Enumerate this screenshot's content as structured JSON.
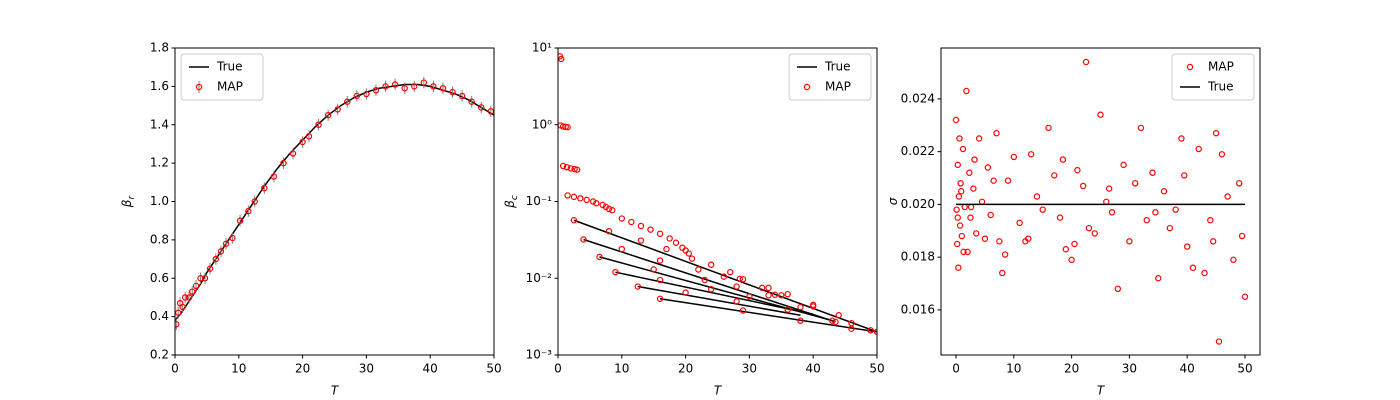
{
  "chart_data": [
    {
      "type": "scatter",
      "xlabel": "T",
      "ylabel": {
        "text": "β",
        "subscript": "r"
      },
      "xlim": [
        0,
        50
      ],
      "ylim": [
        0.2,
        1.8
      ],
      "xticks": [
        0,
        10,
        20,
        30,
        40,
        50
      ],
      "yticks": [
        0.2,
        0.4,
        0.6,
        0.8,
        {
          "value": 1,
          "label": "1.0"
        },
        1.2,
        1.4,
        1.6,
        1.8
      ],
      "legend": "upper left",
      "series": [
        {
          "name": "True",
          "mark": "line",
          "color": "#000000",
          "x": [
            0,
            1,
            2,
            3,
            4,
            5,
            6,
            7,
            8,
            10,
            12,
            14,
            16,
            18,
            20,
            22,
            24,
            26,
            28,
            30,
            32,
            34,
            36,
            38,
            40,
            42,
            44,
            46,
            48,
            50
          ],
          "values": [
            0.38,
            0.42,
            0.47,
            0.52,
            0.57,
            0.63,
            0.68,
            0.73,
            0.78,
            0.88,
            0.98,
            1.08,
            1.17,
            1.25,
            1.32,
            1.39,
            1.45,
            1.5,
            1.54,
            1.57,
            1.59,
            1.6,
            1.61,
            1.61,
            1.6,
            1.58,
            1.56,
            1.53,
            1.49,
            1.45
          ]
        },
        {
          "name": "MAP",
          "mark": "errorbar",
          "color": "#ff0000",
          "error_color": "#808080",
          "x": [
            0.2,
            0.5,
            0.8,
            1.2,
            1.6,
            2.2,
            2.7,
            3.3,
            4,
            4.7,
            5.5,
            6.4,
            7.2,
            8,
            9,
            10.2,
            11.5,
            12.5,
            14,
            15.5,
            17,
            18.5,
            20,
            21,
            22.5,
            24,
            25.5,
            27,
            28.5,
            30,
            31.5,
            33,
            34.5,
            36,
            37.5,
            39,
            40.5,
            42,
            43.5,
            45,
            46.5,
            48,
            49.5
          ],
          "values": [
            0.36,
            0.42,
            0.47,
            0.45,
            0.5,
            0.5,
            0.53,
            0.56,
            0.6,
            0.6,
            0.65,
            0.7,
            0.74,
            0.78,
            0.81,
            0.9,
            0.95,
            1.0,
            1.07,
            1.13,
            1.2,
            1.25,
            1.31,
            1.34,
            1.4,
            1.45,
            1.48,
            1.52,
            1.55,
            1.56,
            1.58,
            1.6,
            1.61,
            1.59,
            1.6,
            1.62,
            1.6,
            1.59,
            1.57,
            1.55,
            1.52,
            1.49,
            1.47
          ],
          "errors": [
            0.03,
            0.03,
            0.03,
            0.03,
            0.03,
            0.03,
            0.03,
            0.03,
            0.03,
            0.03,
            0.03,
            0.03,
            0.03,
            0.03,
            0.03,
            0.03,
            0.03,
            0.03,
            0.03,
            0.03,
            0.03,
            0.03,
            0.03,
            0.03,
            0.03,
            0.03,
            0.03,
            0.03,
            0.03,
            0.03,
            0.03,
            0.03,
            0.03,
            0.03,
            0.03,
            0.03,
            0.03,
            0.03,
            0.03,
            0.03,
            0.03,
            0.03,
            0.03
          ]
        }
      ]
    },
    {
      "type": "line",
      "xlabel": "T",
      "ylabel": {
        "text": "β",
        "subscript": "c"
      },
      "xlim": [
        0,
        50
      ],
      "ylim": [
        0.001,
        10
      ],
      "yscale": "log",
      "xticks": [
        0,
        10,
        20,
        30,
        40,
        50
      ],
      "yticks": [
        {
          "value": 0.001,
          "label": "10⁻³"
        },
        {
          "value": 0.01,
          "label": "10⁻²"
        },
        {
          "value": 0.1,
          "label": "10⁻¹"
        },
        {
          "value": 1,
          "label": "10⁰"
        },
        {
          "value": 10,
          "label": "10¹"
        }
      ],
      "legend": "upper right",
      "series": [
        {
          "name": "True",
          "mark": "segments",
          "color": "#000000",
          "segments": [
            {
              "x": [
                2.5,
                50
              ],
              "values": [
                0.057,
                0.002
              ]
            },
            {
              "x": [
                4,
                43.5
              ],
              "values": [
                0.032,
                0.0027
              ]
            },
            {
              "x": [
                6.5,
                43
              ],
              "values": [
                0.019,
                0.0028
              ]
            },
            {
              "x": [
                9,
                40
              ],
              "values": [
                0.012,
                0.0034
              ]
            },
            {
              "x": [
                12.5,
                38
              ],
              "values": [
                0.0078,
                0.0033
              ]
            },
            {
              "x": [
                16,
                50
              ],
              "values": [
                0.0054,
                0.002
              ]
            }
          ]
        },
        {
          "name": "MAP",
          "mark": "scatter",
          "color": "#ff0000",
          "x": [
            0.3,
            0.5,
            0.4,
            0.8,
            1.2,
            1.5,
            0.8,
            1.4,
            2,
            2.6,
            3,
            1.5,
            2.5,
            3.5,
            4.5,
            5.5,
            6,
            7,
            7.5,
            8,
            8.5,
            10,
            11.5,
            13,
            14.5,
            16,
            17.5,
            18.5,
            19.5,
            20,
            20.5,
            2.5,
            8,
            13,
            17,
            21,
            24,
            27,
            29,
            33,
            36,
            40,
            44,
            46,
            49,
            50,
            4,
            10,
            16,
            22,
            26,
            28.5,
            32,
            35,
            40,
            43.5,
            6.5,
            15,
            23,
            28,
            33,
            38,
            43,
            9,
            16,
            24,
            30,
            34,
            12.5,
            20,
            28,
            36,
            16,
            29,
            38,
            46
          ],
          "values": [
            7.8,
            7.2,
            0.98,
            0.95,
            0.94,
            0.93,
            0.29,
            0.28,
            0.27,
            0.265,
            0.26,
            0.12,
            0.115,
            0.11,
            0.105,
            0.1,
            0.095,
            0.09,
            0.085,
            0.08,
            0.077,
            0.06,
            0.054,
            0.048,
            0.043,
            0.038,
            0.033,
            0.029,
            0.025,
            0.023,
            0.021,
            0.057,
            0.041,
            0.031,
            0.024,
            0.018,
            0.015,
            0.012,
            0.0097,
            0.0075,
            0.0062,
            0.0045,
            0.0033,
            0.0026,
            0.0021,
            0.002,
            0.032,
            0.024,
            0.017,
            0.013,
            0.0105,
            0.0098,
            0.0075,
            0.006,
            0.0043,
            0.0027,
            0.019,
            0.013,
            0.0095,
            0.0078,
            0.006,
            0.0042,
            0.0028,
            0.012,
            0.0095,
            0.0072,
            0.0058,
            0.0061,
            0.0078,
            0.0065,
            0.005,
            0.0039,
            0.0054,
            0.0038,
            0.0028,
            0.0022
          ]
        }
      ]
    },
    {
      "type": "scatter",
      "xlabel": "T",
      "ylabel": {
        "text": "σ"
      },
      "xlim": [
        -2.6,
        52.6
      ],
      "ylim": [
        0.01429,
        0.02593
      ],
      "xticks": [
        0,
        10,
        20,
        30,
        40,
        50
      ],
      "yticks": [
        {
          "value": 0.016,
          "label": "0.016"
        },
        {
          "value": 0.018,
          "label": "0.018"
        },
        {
          "value": 0.02,
          "label": "0.020"
        },
        {
          "value": 0.022,
          "label": "0.022"
        },
        {
          "value": 0.024,
          "label": "0.024"
        }
      ],
      "legend": "upper right",
      "series": [
        {
          "name": "MAP",
          "mark": "scatter",
          "color": "#ff0000",
          "x": [
            0,
            0.1,
            0.2,
            0.3,
            0.4,
            0.5,
            0.6,
            0.7,
            0.8,
            1,
            1.2,
            1.5,
            1.8,
            2,
            2.3,
            2.5,
            3,
            3.5,
            4,
            4.5,
            5,
            5.5,
            6,
            7,
            7.5,
            8,
            9,
            10,
            11,
            12,
            13,
            14,
            15,
            16,
            17,
            18,
            19,
            20,
            21,
            22,
            22.5,
            23,
            24,
            25,
            26,
            27,
            28,
            29,
            30,
            31,
            32,
            33,
            34,
            35,
            36,
            37,
            38,
            39,
            40,
            41,
            42,
            43,
            44,
            45,
            45.5,
            46,
            47,
            48,
            49,
            49.5,
            50,
            0.3,
            0.9,
            1.3,
            2.6,
            3.2,
            6.5,
            8.5,
            12.5,
            18.5,
            20.5,
            26.5,
            34.5,
            39.5,
            44.5
          ],
          "values": [
            0.0232,
            0.0198,
            0.0185,
            0.0215,
            0.0176,
            0.0203,
            0.0225,
            0.0192,
            0.0208,
            0.0188,
            0.0221,
            0.0199,
            0.0243,
            0.0182,
            0.0212,
            0.0195,
            0.0206,
            0.0189,
            0.0225,
            0.0201,
            0.0187,
            0.0214,
            0.0196,
            0.0227,
            0.0186,
            0.0174,
            0.0209,
            0.0218,
            0.0193,
            0.0186,
            0.0219,
            0.0203,
            0.0198,
            0.0229,
            0.0211,
            0.0195,
            0.0183,
            0.0179,
            0.0213,
            0.0207,
            0.0254,
            0.0191,
            0.0189,
            0.0234,
            0.0201,
            0.0197,
            0.0168,
            0.0215,
            0.0186,
            0.0208,
            0.0229,
            0.0194,
            0.0212,
            0.0172,
            0.0205,
            0.0191,
            0.0198,
            0.0225,
            0.0184,
            0.0176,
            0.0221,
            0.0174,
            0.0194,
            0.0227,
            0.0148,
            0.0219,
            0.0203,
            0.0179,
            0.0208,
            0.0188,
            0.0165,
            0.0195,
            0.0205,
            0.0182,
            0.0199,
            0.0217,
            0.0209,
            0.0181,
            0.0187,
            0.0217,
            0.0185,
            0.0206,
            0.0197,
            0.0211,
            0.0186
          ]
        },
        {
          "name": "True",
          "mark": "line",
          "color": "#000000",
          "x": [
            0,
            50
          ],
          "values": [
            0.02,
            0.02
          ]
        }
      ]
    }
  ]
}
